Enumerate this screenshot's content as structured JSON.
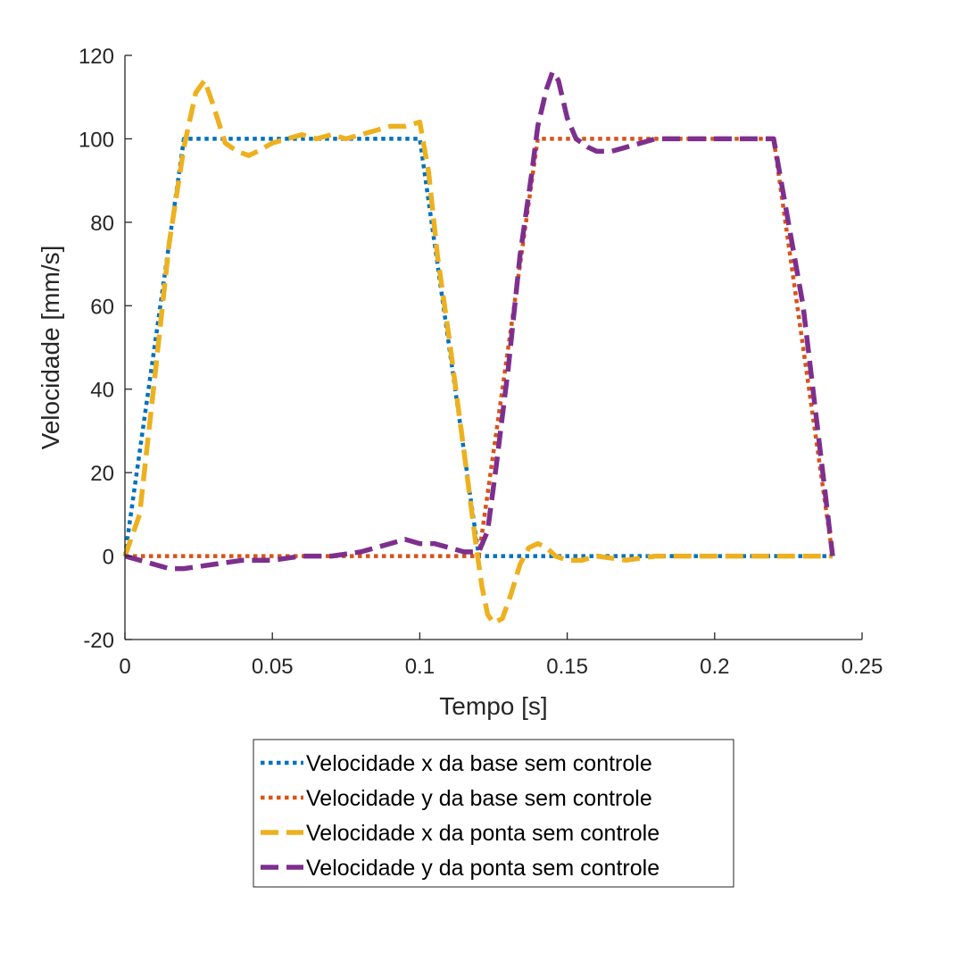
{
  "chart_data": {
    "type": "line",
    "title": "",
    "xlabel": "Tempo [s]",
    "ylabel": "Velocidade [mm/s]",
    "xlim": [
      0,
      0.25
    ],
    "ylim": [
      -20,
      120
    ],
    "xticks": [
      0,
      0.05,
      0.1,
      0.15,
      0.2,
      0.25
    ],
    "xtick_labels": [
      "0",
      "0.05",
      "0.1",
      "0.15",
      "0.2",
      "0.25"
    ],
    "yticks": [
      -20,
      0,
      20,
      40,
      60,
      80,
      100,
      120
    ],
    "ytick_labels": [
      "-20",
      "0",
      "20",
      "40",
      "60",
      "80",
      "100",
      "120"
    ],
    "grid": false,
    "legend_position": "bottom-outside",
    "series": [
      {
        "name": "Velocidade x da base sem controle",
        "color": "#0072BD",
        "style": "dotted",
        "x": [
          0,
          0.02,
          0.1,
          0.12,
          0.24
        ],
        "y": [
          0,
          100,
          100,
          0,
          0
        ]
      },
      {
        "name": "Velocidade y da base sem controle",
        "color": "#D95319",
        "style": "dotted",
        "x": [
          0,
          0.12,
          0.14,
          0.22,
          0.24
        ],
        "y": [
          0,
          0,
          100,
          100,
          0
        ]
      },
      {
        "name": "Velocidade x da ponta sem controle",
        "color": "#EDB120",
        "style": "dashed",
        "x": [
          0,
          0.005,
          0.01,
          0.015,
          0.02,
          0.024,
          0.027,
          0.03,
          0.034,
          0.038,
          0.042,
          0.045,
          0.05,
          0.055,
          0.06,
          0.065,
          0.07,
          0.075,
          0.08,
          0.085,
          0.09,
          0.095,
          0.1,
          0.103,
          0.106,
          0.11,
          0.115,
          0.119,
          0.121,
          0.123,
          0.125,
          0.128,
          0.131,
          0.134,
          0.137,
          0.14,
          0.143,
          0.146,
          0.15,
          0.155,
          0.16,
          0.17,
          0.18,
          0.19,
          0.2,
          0.21,
          0.22,
          0.23,
          0.24
        ],
        "y": [
          0,
          10,
          42,
          75,
          98,
          111,
          114,
          108,
          99,
          97,
          96,
          97,
          99,
          100,
          101,
          100,
          101,
          100,
          101,
          102,
          103,
          103,
          104,
          92,
          72,
          52,
          25,
          3,
          -7,
          -14,
          -16,
          -15,
          -9,
          -2,
          2,
          3,
          2,
          0,
          -1,
          -1,
          0,
          -1,
          0,
          0,
          0,
          0,
          0,
          0,
          0
        ]
      },
      {
        "name": "Velocidade y da ponta sem controle",
        "color": "#7E2F8E",
        "style": "dashed",
        "x": [
          0,
          0.005,
          0.01,
          0.015,
          0.02,
          0.03,
          0.04,
          0.05,
          0.06,
          0.07,
          0.08,
          0.085,
          0.09,
          0.095,
          0.1,
          0.105,
          0.11,
          0.115,
          0.12,
          0.123,
          0.126,
          0.13,
          0.134,
          0.138,
          0.14,
          0.143,
          0.145,
          0.147,
          0.15,
          0.153,
          0.157,
          0.16,
          0.165,
          0.17,
          0.18,
          0.19,
          0.2,
          0.21,
          0.22,
          0.23,
          0.24
        ],
        "y": [
          0,
          -1,
          -2,
          -3,
          -3,
          -2,
          -1,
          -1,
          0,
          0,
          1,
          2,
          3,
          4,
          3,
          3,
          2,
          1,
          1,
          6,
          22,
          45,
          72,
          92,
          103,
          112,
          116,
          114,
          105,
          100,
          98,
          97,
          97,
          98,
          100,
          100,
          100,
          100,
          100,
          60,
          0
        ]
      }
    ]
  }
}
